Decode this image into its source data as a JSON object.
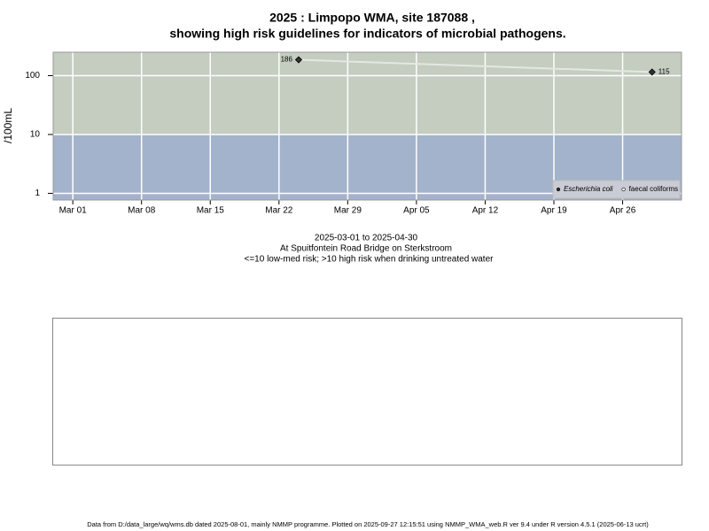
{
  "chart_data": {
    "type": "line",
    "title": "2025 : Limpopo WMA, site 187088 ,",
    "title_line2": "showing high risk guidelines for indicators of microbial pathogens.",
    "ylabel": "/100mL",
    "subtitle": [
      "2025-03-01 to 2025-04-30",
      "At Spuitfontein Road Bridge on Sterkstroom",
      "<=10 low-med risk; >10 high risk when drinking untreated water"
    ],
    "x": [
      "2025-03-24",
      "2025-04-29"
    ],
    "series": [
      {
        "name": "Escherichia coli",
        "color": "#333333",
        "line_color": "#e4e8e0",
        "values": [
          186,
          115
        ]
      },
      {
        "name": "faecal coliforms",
        "color": "#ffffff",
        "values": [
          null,
          null
        ]
      }
    ],
    "log_y": true,
    "ylim": [
      0.77,
      250
    ],
    "yticks": [
      1,
      10,
      100
    ],
    "xlim": [
      "2025-02-27",
      "2025-05-02"
    ],
    "xticks": [
      {
        "value": "2025-03-01",
        "label": "Mar 01"
      },
      {
        "value": "2025-03-08",
        "label": "Mar 08"
      },
      {
        "value": "2025-03-15",
        "label": "Mar 15"
      },
      {
        "value": "2025-03-22",
        "label": "Mar 22"
      },
      {
        "value": "2025-03-29",
        "label": "Mar 29"
      },
      {
        "value": "2025-04-05",
        "label": "Apr 05"
      },
      {
        "value": "2025-04-12",
        "label": "Apr 12"
      },
      {
        "value": "2025-04-19",
        "label": "Apr 19"
      },
      {
        "value": "2025-04-26",
        "label": "Apr 26"
      }
    ],
    "threshold": 10,
    "high_band_color": "#c4cdc0",
    "low_band_color": "#a3b3cb",
    "grid": true,
    "legend": "bottom-right",
    "footer": "Data from D:/data_large/wq/wms.db dated 2025-08-01, mainly NMMP programme. Plotted on 2025-09-27 12:15:51 using NMMP_WMA_web.R ver 9.4 under R version 4.5.1 (2025-06-13 ucrt)"
  }
}
